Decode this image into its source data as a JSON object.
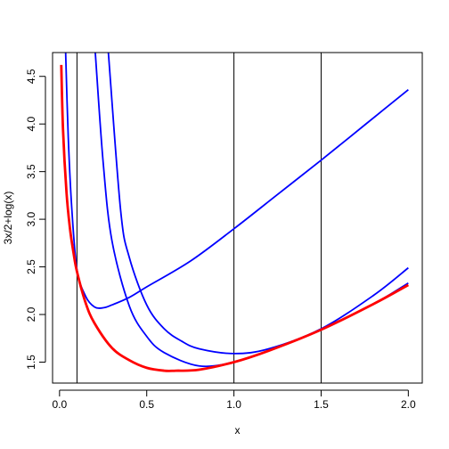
{
  "chart_data": {
    "type": "line",
    "xlabel": "x",
    "ylabel": "3x/2+log(x)",
    "xlim": [
      -0.04,
      2.08
    ],
    "ylim": [
      1.28,
      4.75
    ],
    "x_ticks": [
      0.0,
      0.5,
      1.0,
      1.5,
      2.0
    ],
    "x_tick_labels": [
      "0.0",
      "0.5",
      "1.0",
      "1.5",
      "2.0"
    ],
    "y_ticks": [
      1.5,
      2.0,
      2.5,
      3.0,
      3.5,
      4.0,
      4.5
    ],
    "y_tick_labels": [
      "1.5",
      "2.0",
      "2.5",
      "3.0",
      "3.5",
      "4.0",
      "4.5"
    ],
    "grid": false,
    "legend": "none",
    "colors": {
      "target": "#ff0000",
      "approx": "#0000ff",
      "vline": "#000000"
    },
    "target_curve": {
      "formula": "3x/2+log(x)",
      "x": [
        0.01,
        0.02,
        0.04,
        0.06,
        0.08,
        0.1,
        0.15,
        0.2,
        0.3,
        0.4,
        0.5,
        0.6,
        0.667,
        0.8,
        1.0,
        1.2,
        1.5,
        1.8,
        2.0
      ],
      "y": [
        4.62,
        3.94,
        3.28,
        2.9,
        2.65,
        2.45,
        2.12,
        1.91,
        1.65,
        1.52,
        1.44,
        1.41,
        1.41,
        1.42,
        1.5,
        1.62,
        1.84,
        2.11,
        2.31
      ]
    },
    "approx_curves": [
      {
        "x": [
          0.035,
          0.05,
          0.07,
          0.1,
          0.15,
          0.2,
          0.25,
          0.3,
          0.4,
          0.5,
          0.75,
          1.0,
          1.25,
          1.5,
          1.75,
          2.0
        ],
        "y": [
          4.75,
          3.86,
          3.12,
          2.47,
          2.19,
          2.08,
          2.07,
          2.1,
          2.18,
          2.29,
          2.56,
          2.9,
          3.26,
          3.62,
          3.99,
          4.36
        ]
      },
      {
        "x": [
          0.205,
          0.25,
          0.3,
          0.4,
          0.5,
          0.6,
          0.8,
          1.0,
          1.2,
          1.5,
          1.8,
          2.0
        ],
        "y": [
          4.75,
          3.6,
          2.78,
          2.09,
          1.77,
          1.6,
          1.46,
          1.5,
          1.62,
          1.84,
          2.11,
          2.33
        ]
      },
      {
        "x": [
          0.28,
          0.35,
          0.4,
          0.5,
          0.6,
          0.7,
          0.8,
          1.0,
          1.2,
          1.5,
          1.8,
          2.0
        ],
        "y": [
          4.75,
          3.1,
          2.6,
          2.1,
          1.85,
          1.72,
          1.64,
          1.59,
          1.64,
          1.85,
          2.2,
          2.49
        ]
      }
    ],
    "vertical_lines": [
      0.1,
      1.0,
      1.5
    ]
  }
}
